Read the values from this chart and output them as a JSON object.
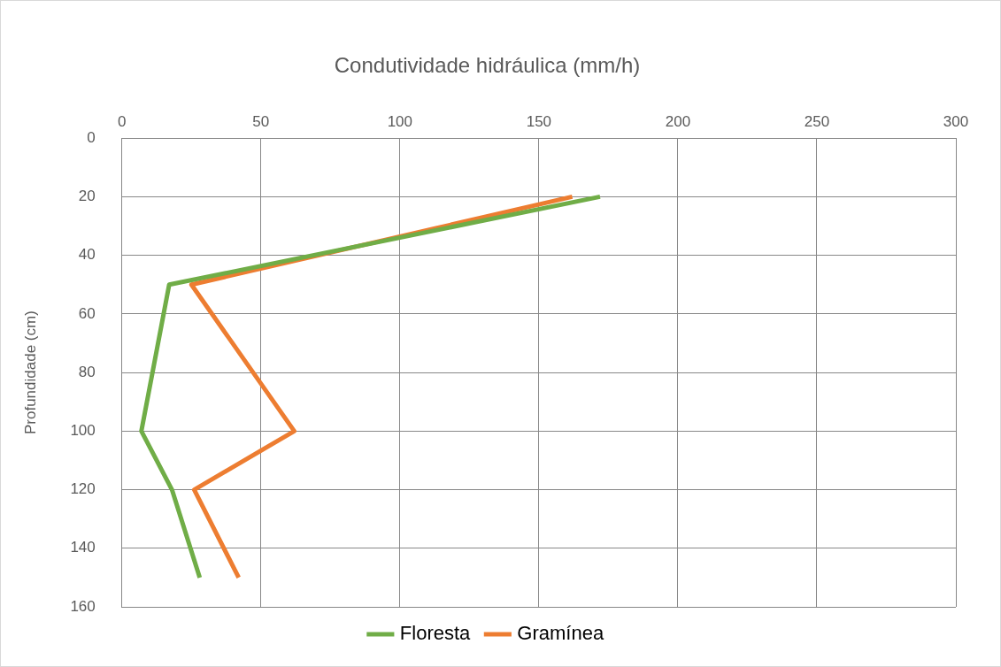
{
  "chart_data": {
    "type": "line",
    "title": "Condutividade hidráulica (mm/h)",
    "ylabel": "Profundidade (cm)",
    "series": [
      {
        "name": "Floresta",
        "color": "#70ad47",
        "x": [
          172,
          17,
          7,
          18,
          28
        ],
        "values": [
          20,
          50,
          100,
          120,
          150
        ]
      },
      {
        "name": "Gramínea",
        "color": "#ed7d31",
        "x": [
          162,
          25,
          62,
          26,
          42
        ],
        "values": [
          20,
          50,
          100,
          120,
          150
        ]
      }
    ],
    "xlim": [
      0,
      300
    ],
    "xticks": [
      0,
      50,
      100,
      150,
      200,
      250,
      300
    ],
    "ylim": [
      160,
      0
    ],
    "yticks": [
      0,
      20,
      40,
      60,
      80,
      100,
      120,
      140,
      160
    ],
    "grid": true,
    "legend": "bottom",
    "marker": "none",
    "line_style": "solid"
  }
}
